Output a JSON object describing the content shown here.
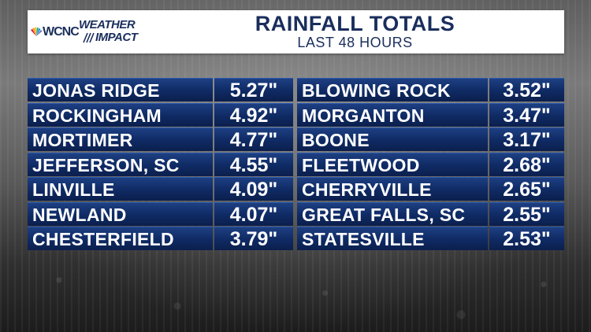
{
  "header": {
    "logo": {
      "station": "WCNC",
      "brand_line1": "WEATHER",
      "brand_line2": "IMPACT"
    },
    "title": "RAINFALL TOTALS",
    "subtitle": "LAST 48 HOURS"
  },
  "left_column": [
    {
      "location": "JONAS RIDGE",
      "amount": "5.27\""
    },
    {
      "location": "ROCKINGHAM",
      "amount": "4.92\""
    },
    {
      "location": "MORTIMER",
      "amount": "4.77\""
    },
    {
      "location": "JEFFERSON, SC",
      "amount": "4.55\""
    },
    {
      "location": "LINVILLE",
      "amount": "4.09\""
    },
    {
      "location": "NEWLAND",
      "amount": "4.07\""
    },
    {
      "location": "CHESTERFIELD",
      "amount": "3.79\""
    }
  ],
  "right_column": [
    {
      "location": "BLOWING ROCK",
      "amount": "3.52\""
    },
    {
      "location": "MORGANTON",
      "amount": "3.47\""
    },
    {
      "location": "BOONE",
      "amount": "3.17\""
    },
    {
      "location": "FLEETWOOD",
      "amount": "2.68\""
    },
    {
      "location": "CHERRYVILLE",
      "amount": "2.65\""
    },
    {
      "location": "GREAT FALLS, SC",
      "amount": "2.55\""
    },
    {
      "location": "STATESVILLE",
      "amount": "2.53\""
    }
  ],
  "colors": {
    "brand_navy": "#1a2e5c",
    "cell_blue": "#0f2a63",
    "text_white": "#ffffff"
  }
}
